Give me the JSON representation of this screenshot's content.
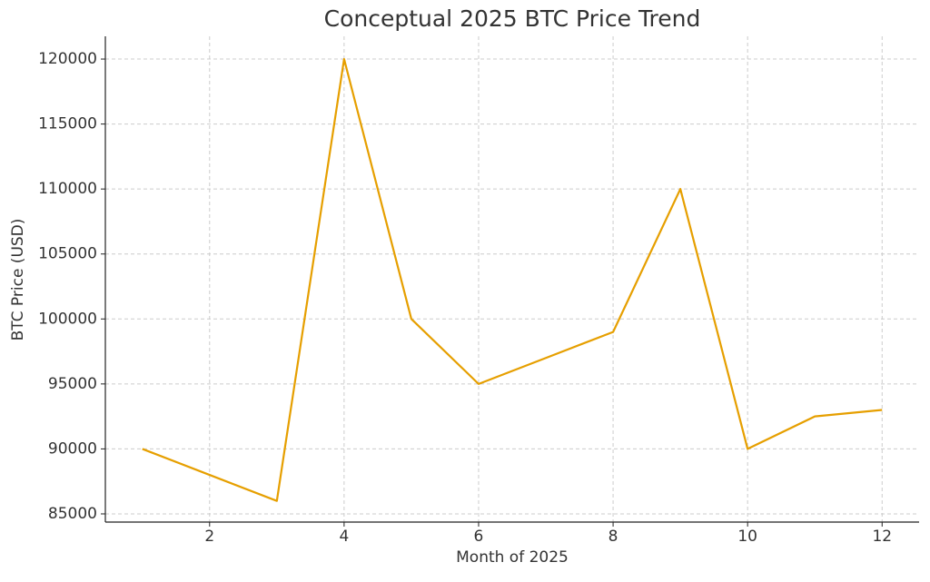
{
  "chart_data": {
    "type": "line",
    "title": "Conceptual 2025 BTC Price Trend",
    "x_label": "Month of 2025",
    "y_label": "BTC Price (USD)",
    "x": [
      1,
      2,
      3,
      4,
      5,
      6,
      7,
      8,
      9,
      10,
      11,
      12
    ],
    "series": [
      {
        "name": "BTC Price",
        "color": "#e69f00",
        "values": [
          90000,
          88000,
          86000,
          120000,
          100000,
          95000,
          97000,
          99000,
          110000,
          90000,
          92500,
          93000
        ]
      }
    ],
    "xlim": [
      0.45,
      12.55
    ],
    "xticks": [
      2,
      4,
      6,
      8,
      10,
      12
    ],
    "ylim": [
      84370,
      121750
    ],
    "yticks": [
      85000,
      90000,
      95000,
      100000,
      105000,
      110000,
      115000,
      120000
    ],
    "grid": true
  }
}
